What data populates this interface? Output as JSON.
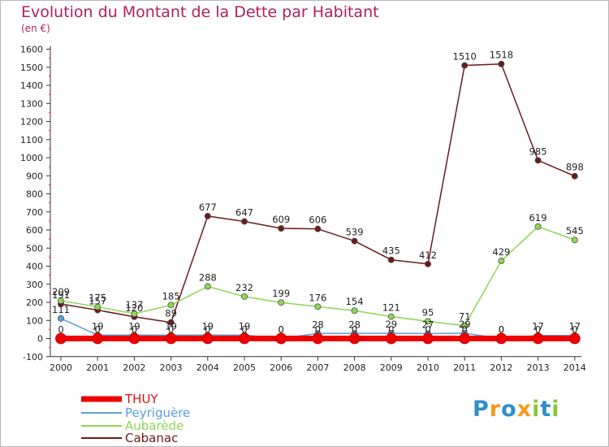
{
  "chart_data": {
    "type": "line",
    "title": "Evolution du Montant de la Dette par Habitant",
    "subtitle": "(en €)",
    "categories": [
      "2000",
      "2001",
      "2002",
      "2003",
      "2004",
      "2005",
      "2006",
      "2007",
      "2008",
      "2009",
      "2010",
      "2011",
      "2012",
      "2013",
      "2014"
    ],
    "ylim": [
      -100,
      1600
    ],
    "yticks": [
      -100,
      0,
      100,
      200,
      300,
      400,
      500,
      600,
      700,
      800,
      900,
      1000,
      1100,
      1200,
      1300,
      1400,
      1500,
      1600
    ],
    "grid": false,
    "legend_position": "bottom-left",
    "series": [
      {
        "name": "THUY",
        "color": "#ee0000",
        "values": [
          0,
          0,
          0,
          0,
          0,
          0,
          0,
          0,
          0,
          0,
          0,
          0,
          0,
          0,
          0
        ],
        "labels": [
          "0",
          "0",
          "0",
          "0",
          "0",
          "0",
          "0",
          "0",
          "0",
          "0",
          "0",
          "0",
          "0",
          "0",
          "0"
        ]
      },
      {
        "name": "Peyriguère",
        "color": "#5aa0d8",
        "values": [
          111,
          19,
          19,
          19,
          19,
          19,
          0,
          28,
          28,
          29,
          27,
          29,
          0,
          17,
          17
        ],
        "labels": [
          "111",
          "19",
          "19",
          "19",
          "19",
          "19",
          "0",
          "28",
          "28",
          "29",
          "27",
          "29",
          "0",
          "17",
          "17"
        ]
      },
      {
        "name": "Aubarède",
        "color": "#8ed654",
        "values": [
          209,
          175,
          137,
          185,
          288,
          232,
          199,
          176,
          154,
          121,
          95,
          71,
          429,
          619,
          545
        ],
        "labels": [
          "209",
          "175",
          "137",
          "185",
          "288",
          "232",
          "199",
          "176",
          "154",
          "121",
          "95",
          "71",
          "429",
          "619",
          "545"
        ]
      },
      {
        "name": "Cabanac",
        "color": "#6b1a1a",
        "values": [
          191,
          157,
          120,
          89,
          677,
          647,
          609,
          606,
          539,
          435,
          412,
          1510,
          1518,
          985,
          898
        ],
        "labels": [
          "191",
          "157",
          "120",
          "89",
          "677",
          "647",
          "609",
          "606",
          "539",
          "435",
          "412",
          "1510",
          "1518",
          "985",
          "898"
        ]
      }
    ]
  },
  "branding": {
    "letters": [
      {
        "ch": "P",
        "color": "#2e8ec9"
      },
      {
        "ch": "r",
        "color": "#f29a1e"
      },
      {
        "ch": "o",
        "color": "#2e8ec9"
      },
      {
        "ch": "x",
        "color": "#f29a1e"
      },
      {
        "ch": "i",
        "color": "#8bc63f"
      },
      {
        "ch": "t",
        "color": "#2e8ec9"
      },
      {
        "ch": "i",
        "color": "#8bc63f"
      }
    ]
  }
}
